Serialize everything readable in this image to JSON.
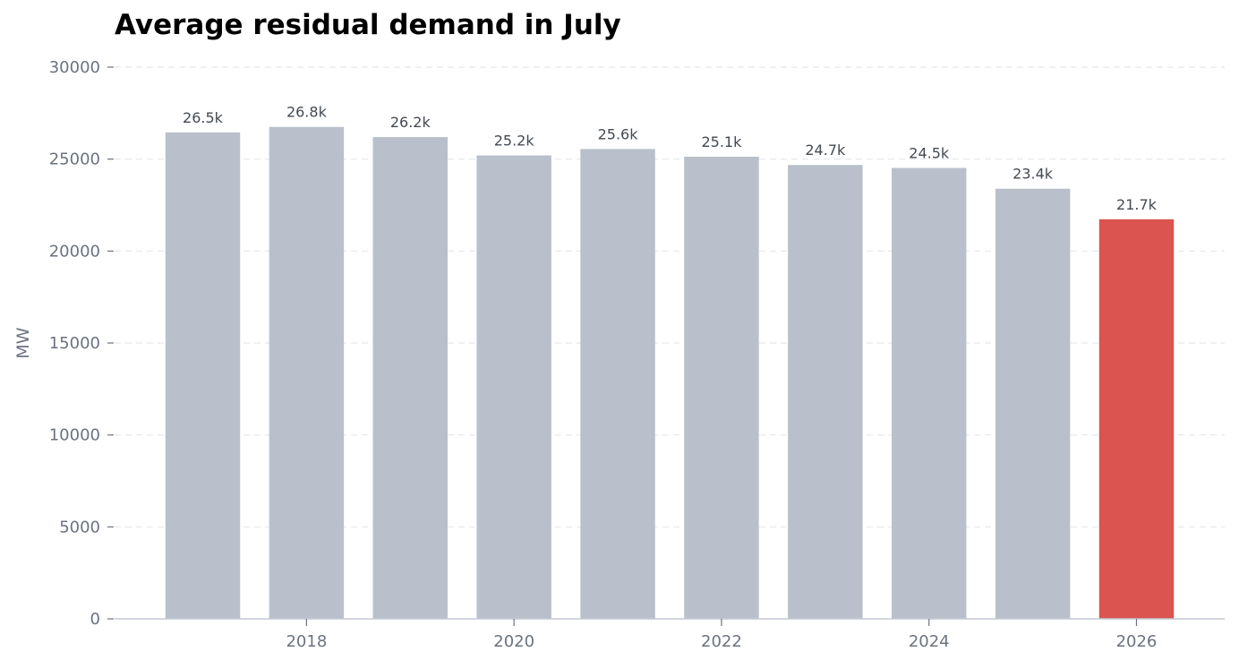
{
  "chart_data": {
    "type": "bar",
    "title": "Average residual demand in July",
    "xlabel": "",
    "ylabel": "MW",
    "ylim": [
      0,
      30000
    ],
    "yticks": [
      0,
      5000,
      10000,
      15000,
      20000,
      25000,
      30000
    ],
    "xlim": [
      2016.15,
      2026.85
    ],
    "xticks": [
      2018,
      2020,
      2022,
      2024,
      2026
    ],
    "categories": [
      2017,
      2018,
      2019,
      2020,
      2021,
      2022,
      2023,
      2024,
      2025,
      2026
    ],
    "values": [
      26450,
      26750,
      26200,
      25200,
      25550,
      25130,
      24680,
      24520,
      23390,
      21730
    ],
    "data_labels": [
      "26.5k",
      "26.8k",
      "26.2k",
      "25.2k",
      "25.6k",
      "25.1k",
      "24.7k",
      "24.5k",
      "23.4k",
      "21.7k"
    ],
    "highlight_index": 9,
    "colors": {
      "bar": "#b9c0cb",
      "highlight": "#db5450",
      "grid": "#e5e7eb",
      "tick_text": "#6b7280",
      "label_text": "#444a52",
      "axis": "#c3c8d4"
    },
    "grid": true,
    "grid_axis": "y",
    "legend": "none"
  }
}
